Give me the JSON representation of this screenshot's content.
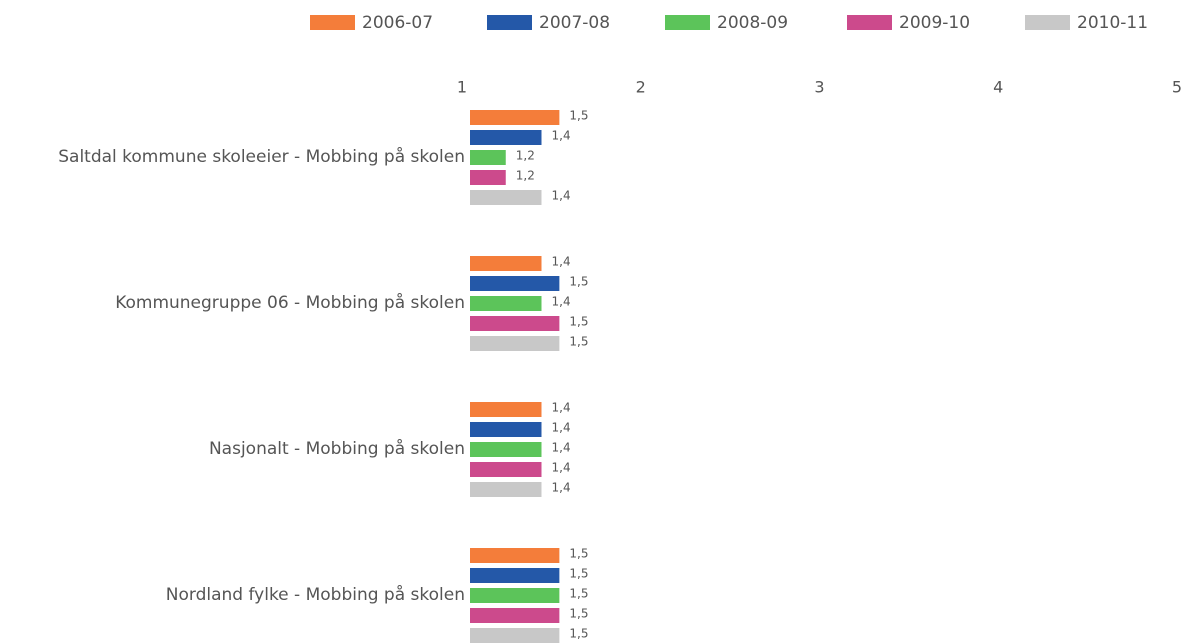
{
  "chart_data": {
    "type": "hbar",
    "categories": [
      "Saltdal kommune skoleeier - Mobbing på skolen",
      "Kommunegruppe 06 - Mobbing på skolen",
      "Nasjonalt - Mobbing på skolen",
      "Nordland fylke - Mobbing på skolen"
    ],
    "series": [
      {
        "name": "2006-07",
        "color": "#f47d3a",
        "values": [
          1.5,
          1.4,
          1.4,
          1.5
        ],
        "value_labels": [
          "1,5",
          "1,4",
          "1,4",
          "1,5"
        ]
      },
      {
        "name": "2007-08",
        "color": "#2458a8",
        "values": [
          1.4,
          1.5,
          1.4,
          1.5
        ],
        "value_labels": [
          "1,4",
          "1,5",
          "1,4",
          "1,5"
        ]
      },
      {
        "name": "2008-09",
        "color": "#5cc45a",
        "values": [
          1.2,
          1.4,
          1.4,
          1.5
        ],
        "value_labels": [
          "1,2",
          "1,4",
          "1,4",
          "1,5"
        ]
      },
      {
        "name": "2009-10",
        "color": "#cc4a8c",
        "values": [
          1.2,
          1.5,
          1.4,
          1.5
        ],
        "value_labels": [
          "1,2",
          "1,5",
          "1,4",
          "1,5"
        ]
      },
      {
        "name": "2010-11",
        "color": "#c8c8c8",
        "values": [
          1.4,
          1.5,
          1.4,
          1.5
        ],
        "value_labels": [
          "1,4",
          "1,5",
          "1,4",
          "1,5"
        ]
      }
    ],
    "xlim": [
      1,
      5
    ],
    "xticks": [
      1,
      2,
      3,
      4,
      5
    ],
    "legend": "top"
  }
}
